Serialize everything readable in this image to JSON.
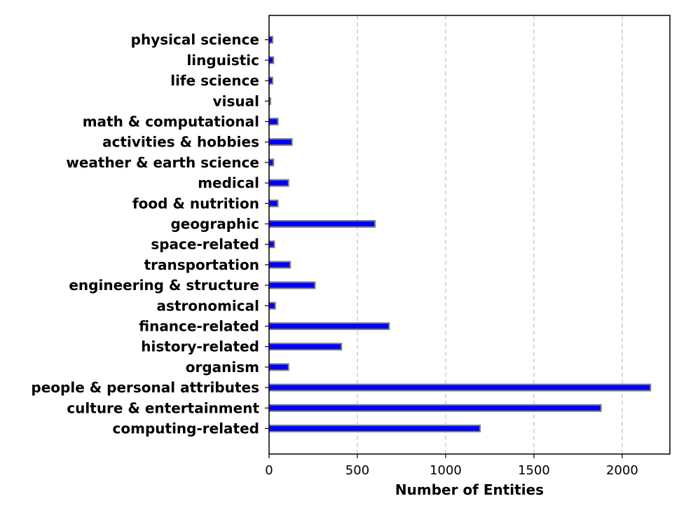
{
  "chart_data": {
    "type": "bar",
    "orientation": "horizontal",
    "categories": [
      "computing-related",
      "culture & entertainment",
      "people & personal attributes",
      "organism",
      "history-related",
      "finance-related",
      "astronomical",
      "engineering & structure",
      "transportation",
      "space-related",
      "geographic",
      "food & nutrition",
      "medical",
      "weather & earth science",
      "activities & hobbies",
      "math & computational",
      "visual",
      "life science",
      "linguistic",
      "physical science"
    ],
    "values": [
      1195,
      1880,
      2160,
      110,
      410,
      680,
      35,
      260,
      120,
      30,
      600,
      50,
      110,
      25,
      130,
      50,
      8,
      20,
      25,
      20
    ],
    "xlabel": "Number of Entities",
    "ylabel": "",
    "xlim": [
      0,
      2270
    ],
    "xticks": [
      0,
      500,
      1000,
      1500,
      2000
    ],
    "xtick_labels": [
      "0",
      "500",
      "1000",
      "1500",
      "2000"
    ],
    "grid": "x-axis dashed",
    "colors": {
      "bar_fill": "#0000ff",
      "bar_edge": "#808080",
      "grid": "#bfbfbf"
    }
  }
}
